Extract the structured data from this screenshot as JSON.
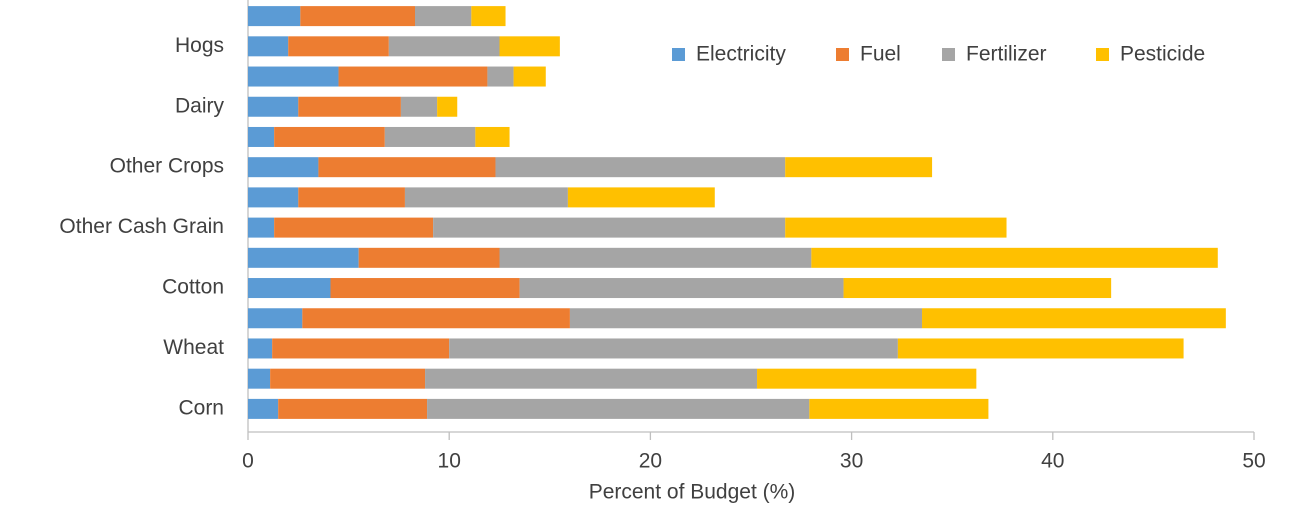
{
  "chart_data": {
    "type": "bar",
    "orientation": "horizontal",
    "stacked": true,
    "x_label": "Percent of Budget (%)",
    "categories": [
      "Corn",
      null,
      "Wheat",
      null,
      "Cotton",
      null,
      "Other Cash Grain",
      null,
      "Other Crops",
      null,
      "Dairy",
      null,
      "Hogs",
      null
    ],
    "series": [
      {
        "name": "Electricity",
        "color": "#5b9bd5",
        "values": [
          1.5,
          1.1,
          1.2,
          2.7,
          4.1,
          5.5,
          1.3,
          2.5,
          3.5,
          1.3,
          2.5,
          4.5,
          2.0,
          2.6
        ]
      },
      {
        "name": "Fuel",
        "color": "#ed7d31",
        "values": [
          7.4,
          7.7,
          8.8,
          13.3,
          9.4,
          7.0,
          7.9,
          5.3,
          8.8,
          5.5,
          5.1,
          7.4,
          5.0,
          5.7
        ]
      },
      {
        "name": "Fertilizer",
        "color": "#a5a5a5",
        "values": [
          19.0,
          16.5,
          22.3,
          17.5,
          16.1,
          15.5,
          17.5,
          8.1,
          14.4,
          4.5,
          1.8,
          1.3,
          5.5,
          2.8
        ]
      },
      {
        "name": "Pesticide",
        "color": "#ffc000",
        "values": [
          8.9,
          10.9,
          14.2,
          15.1,
          13.3,
          20.2,
          11.0,
          7.3,
          7.3,
          1.7,
          1.0,
          1.6,
          3.0,
          1.7
        ]
      }
    ],
    "xlim": [
      0,
      50
    ],
    "xticks": [
      0,
      10,
      20,
      30,
      40,
      50
    ],
    "grid": false,
    "legend": "upper right"
  }
}
